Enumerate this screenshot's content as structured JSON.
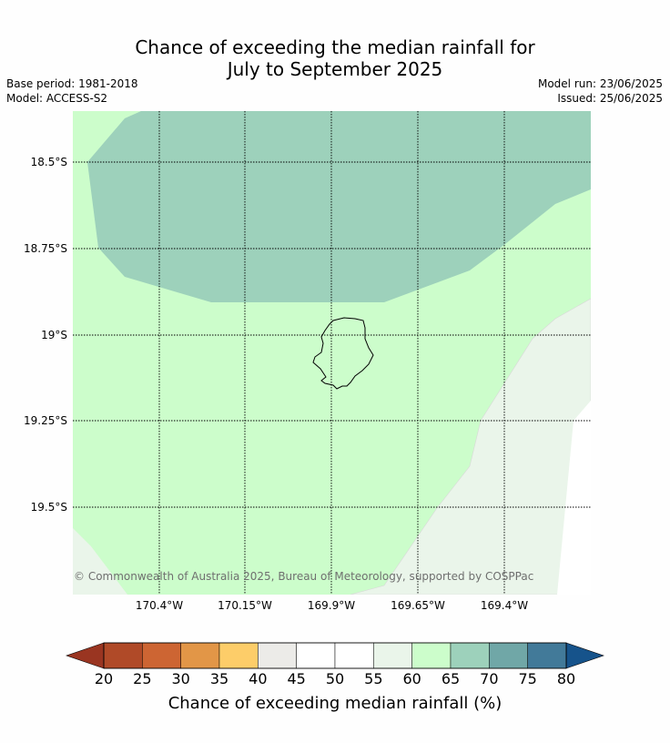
{
  "title": {
    "line1": "Chance of exceeding the median rainfall for",
    "line2": "July to September 2025"
  },
  "meta": {
    "base_period": "Base period: 1981-2018",
    "model": "Model: ACCESS-S2",
    "model_run": "Model run: 23/06/2025",
    "issued": "Issued: 25/06/2025"
  },
  "map": {
    "lat_labels": [
      "18.5°S",
      "18.75°S",
      "19°S",
      "19.25°S",
      "19.5°S"
    ],
    "lon_labels": [
      "170.4°W",
      "170.15°W",
      "169.9°W",
      "169.65°W",
      "169.4°W"
    ],
    "copyright": "© Commonwealth of Australia 2025, Bureau of Meteorology, supported by COSPPac",
    "region_colors": {
      "60-65": "#ccfdcb",
      "65-70": "#9dd1bb",
      "55-60": "#eaf5ea",
      "50-55": "#ffffff"
    }
  },
  "colorbar": {
    "label": "Chance of exceeding median rainfall (%)",
    "ticks": [
      "20",
      "25",
      "30",
      "35",
      "40",
      "45",
      "50",
      "55",
      "60",
      "65",
      "70",
      "75",
      "80"
    ],
    "colors": [
      "#b04a28",
      "#cd6533",
      "#e29647",
      "#fdcd69",
      "#ecebe8",
      "#ffffff",
      "#ffffff",
      "#eaf5ea",
      "#ccfdcb",
      "#9dd1bb",
      "#70a7a7",
      "#427a99"
    ],
    "under_color": "#9a3521",
    "over_color": "#16538b"
  }
}
